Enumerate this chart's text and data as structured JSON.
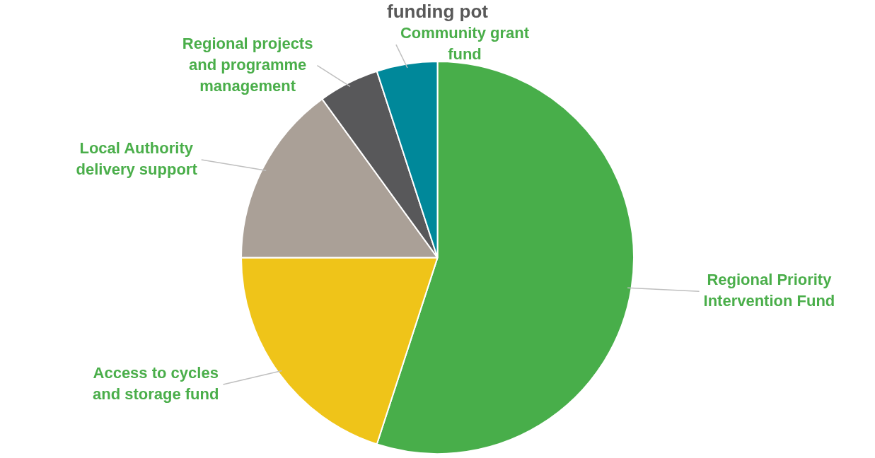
{
  "chart_data": {
    "type": "pie",
    "title": "funding pot",
    "categories": [
      "Regional Priority Intervention Fund",
      "Access to cycles and storage fund",
      "Local Authority delivery support",
      "Regional projects and programme management",
      "Community grant fund"
    ],
    "values": [
      55,
      20,
      15,
      5,
      5
    ],
    "colors": [
      "#48ae4a",
      "#efc419",
      "#aaa097",
      "#58585a",
      "#00889a"
    ],
    "legend": false
  }
}
